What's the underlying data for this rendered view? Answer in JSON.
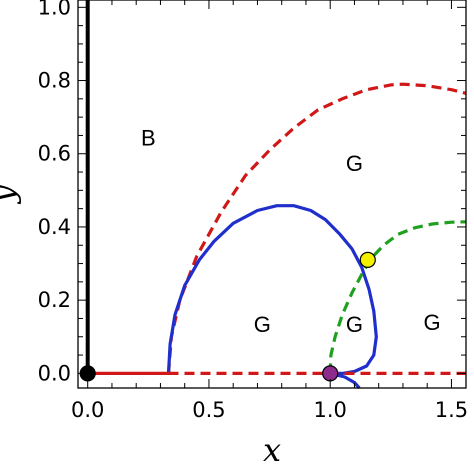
{
  "chart_data": {
    "type": "line",
    "title": "",
    "xlabel": "x",
    "ylabel": "y",
    "xlim": [
      -0.04,
      1.56
    ],
    "ylim": [
      -0.04,
      1.02
    ],
    "xticks": [
      "0.0",
      "0.5",
      "1.0",
      "1.5"
    ],
    "yticks": [
      "0.0",
      "0.2",
      "0.4",
      "0.6",
      "0.8",
      "1.0"
    ],
    "grid": false,
    "legend": "none",
    "colors": {
      "red": "#d01818",
      "blue": "#1f2fcc",
      "green": "#1fa11f",
      "black": "#000000",
      "purple": "#8e2c8e",
      "yellow": "#f3f000"
    },
    "series": [
      {
        "color": "red",
        "style": "dashed",
        "x": [
          0.333,
          0.345,
          0.38,
          0.45,
          0.55,
          0.65,
          0.75,
          0.85,
          0.95,
          1.05,
          1.15,
          1.25,
          1.3,
          1.4,
          1.5,
          1.56
        ],
        "y": [
          0.0,
          0.1,
          0.2,
          0.32,
          0.44,
          0.54,
          0.61,
          0.67,
          0.72,
          0.75,
          0.775,
          0.788,
          0.79,
          0.786,
          0.775,
          0.765
        ]
      },
      {
        "color": "blue",
        "style": "solid",
        "x": [
          0.333,
          0.34,
          0.36,
          0.4,
          0.46,
          0.52,
          0.6,
          0.7,
          0.78,
          0.85,
          0.92,
          0.98,
          1.04,
          1.09,
          1.13,
          1.16,
          1.18,
          1.19,
          1.18,
          1.15,
          1.1,
          1.05,
          1.02
        ],
        "y": [
          0.0,
          0.08,
          0.16,
          0.24,
          0.31,
          0.36,
          0.41,
          0.445,
          0.458,
          0.458,
          0.445,
          0.42,
          0.38,
          0.34,
          0.29,
          0.23,
          0.17,
          0.1,
          0.05,
          0.02,
          0.005,
          0.0,
          0.0
        ]
      },
      {
        "color": "blue",
        "style": "solid",
        "x": [
          1.0,
          1.06,
          1.1,
          1.12
        ],
        "y": [
          0.0,
          -0.01,
          -0.025,
          -0.04
        ]
      },
      {
        "color": "green",
        "style": "dashed",
        "x": [
          1.0,
          1.003,
          1.02,
          1.05,
          1.09,
          1.13,
          1.17,
          1.22,
          1.28,
          1.35,
          1.42,
          1.5,
          1.56
        ],
        "y": [
          0.0,
          0.05,
          0.1,
          0.16,
          0.22,
          0.27,
          0.315,
          0.35,
          0.38,
          0.398,
          0.408,
          0.413,
          0.414
        ]
      },
      {
        "color": "red",
        "style": "solid",
        "x": [
          0.0,
          0.333
        ],
        "y": [
          0.0,
          0.0
        ]
      },
      {
        "color": "red",
        "style": "dashed",
        "x": [
          0.333,
          1.56
        ],
        "y": [
          0.0,
          0.0
        ]
      },
      {
        "color": "black",
        "style": "solid",
        "x": [
          0.0,
          0.0
        ],
        "y": [
          0.0,
          1.02
        ]
      }
    ],
    "points": [
      {
        "x": 0.0,
        "y": 0.0,
        "color": "black"
      },
      {
        "x": 1.0,
        "y": 0.0,
        "color": "purple"
      },
      {
        "x": 1.155,
        "y": 0.31,
        "color": "yellow"
      }
    ],
    "annotations": [
      {
        "text": "B",
        "x": 0.25,
        "y": 0.645
      },
      {
        "text": "G",
        "x": 1.1,
        "y": 0.575
      },
      {
        "text": "G",
        "x": 0.72,
        "y": 0.135
      },
      {
        "text": "G",
        "x": 1.1,
        "y": 0.135
      },
      {
        "text": "G",
        "x": 1.42,
        "y": 0.14
      }
    ]
  }
}
